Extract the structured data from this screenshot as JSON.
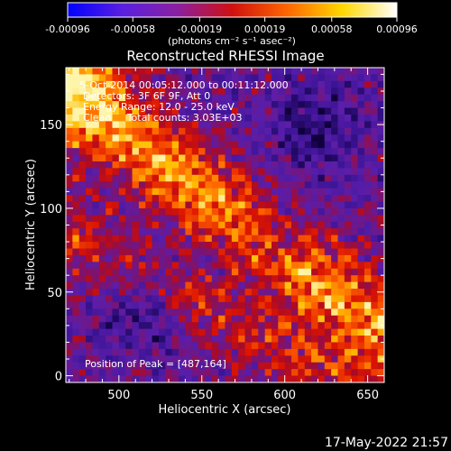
{
  "colorbar": {
    "tick_labels": [
      "-0.00096",
      "-0.00058",
      "-0.00019",
      "0.00019",
      "0.00058",
      "0.00096"
    ],
    "units": "(photons cm⁻² s⁻¹ asec⁻²)",
    "range": [
      -0.00096,
      0.00096
    ],
    "colors": [
      "#0000ff",
      "#5a1fe0",
      "#8a20a0",
      "#d01010",
      "#ff6600",
      "#ffd700",
      "#ffffff"
    ]
  },
  "overlay": {
    "lines": [
      "5-Oct-2014 00:05:12.000 to 00:11:12.000",
      "Detectors: 3F 6F 9F, Att 0",
      "Energy Range: 12.0 - 25.0 keV",
      "Clean     Total counts: 3.03E+03"
    ],
    "peak": "Position of Peak = [487,164]"
  },
  "timestamp": "17-May-2022 21:57",
  "chart_data": {
    "type": "heatmap",
    "title": "Reconstructed RHESSI Image",
    "xlabel": "Heliocentric X (arcsec)",
    "ylabel": "Heliocentric Y (arcsec)",
    "xlim": [
      468,
      660
    ],
    "ylim": [
      -4,
      184
    ],
    "xticks": [
      500,
      550,
      600,
      650
    ],
    "yticks": [
      0,
      50,
      100,
      150
    ],
    "x_tick_labels": [
      "500",
      "550",
      "600",
      "650"
    ],
    "y_tick_labels": [
      "0",
      "50",
      "100",
      "150"
    ],
    "grid_cols": 48,
    "grid_rows": 47,
    "peak_position": [
      487,
      164
    ]
  }
}
